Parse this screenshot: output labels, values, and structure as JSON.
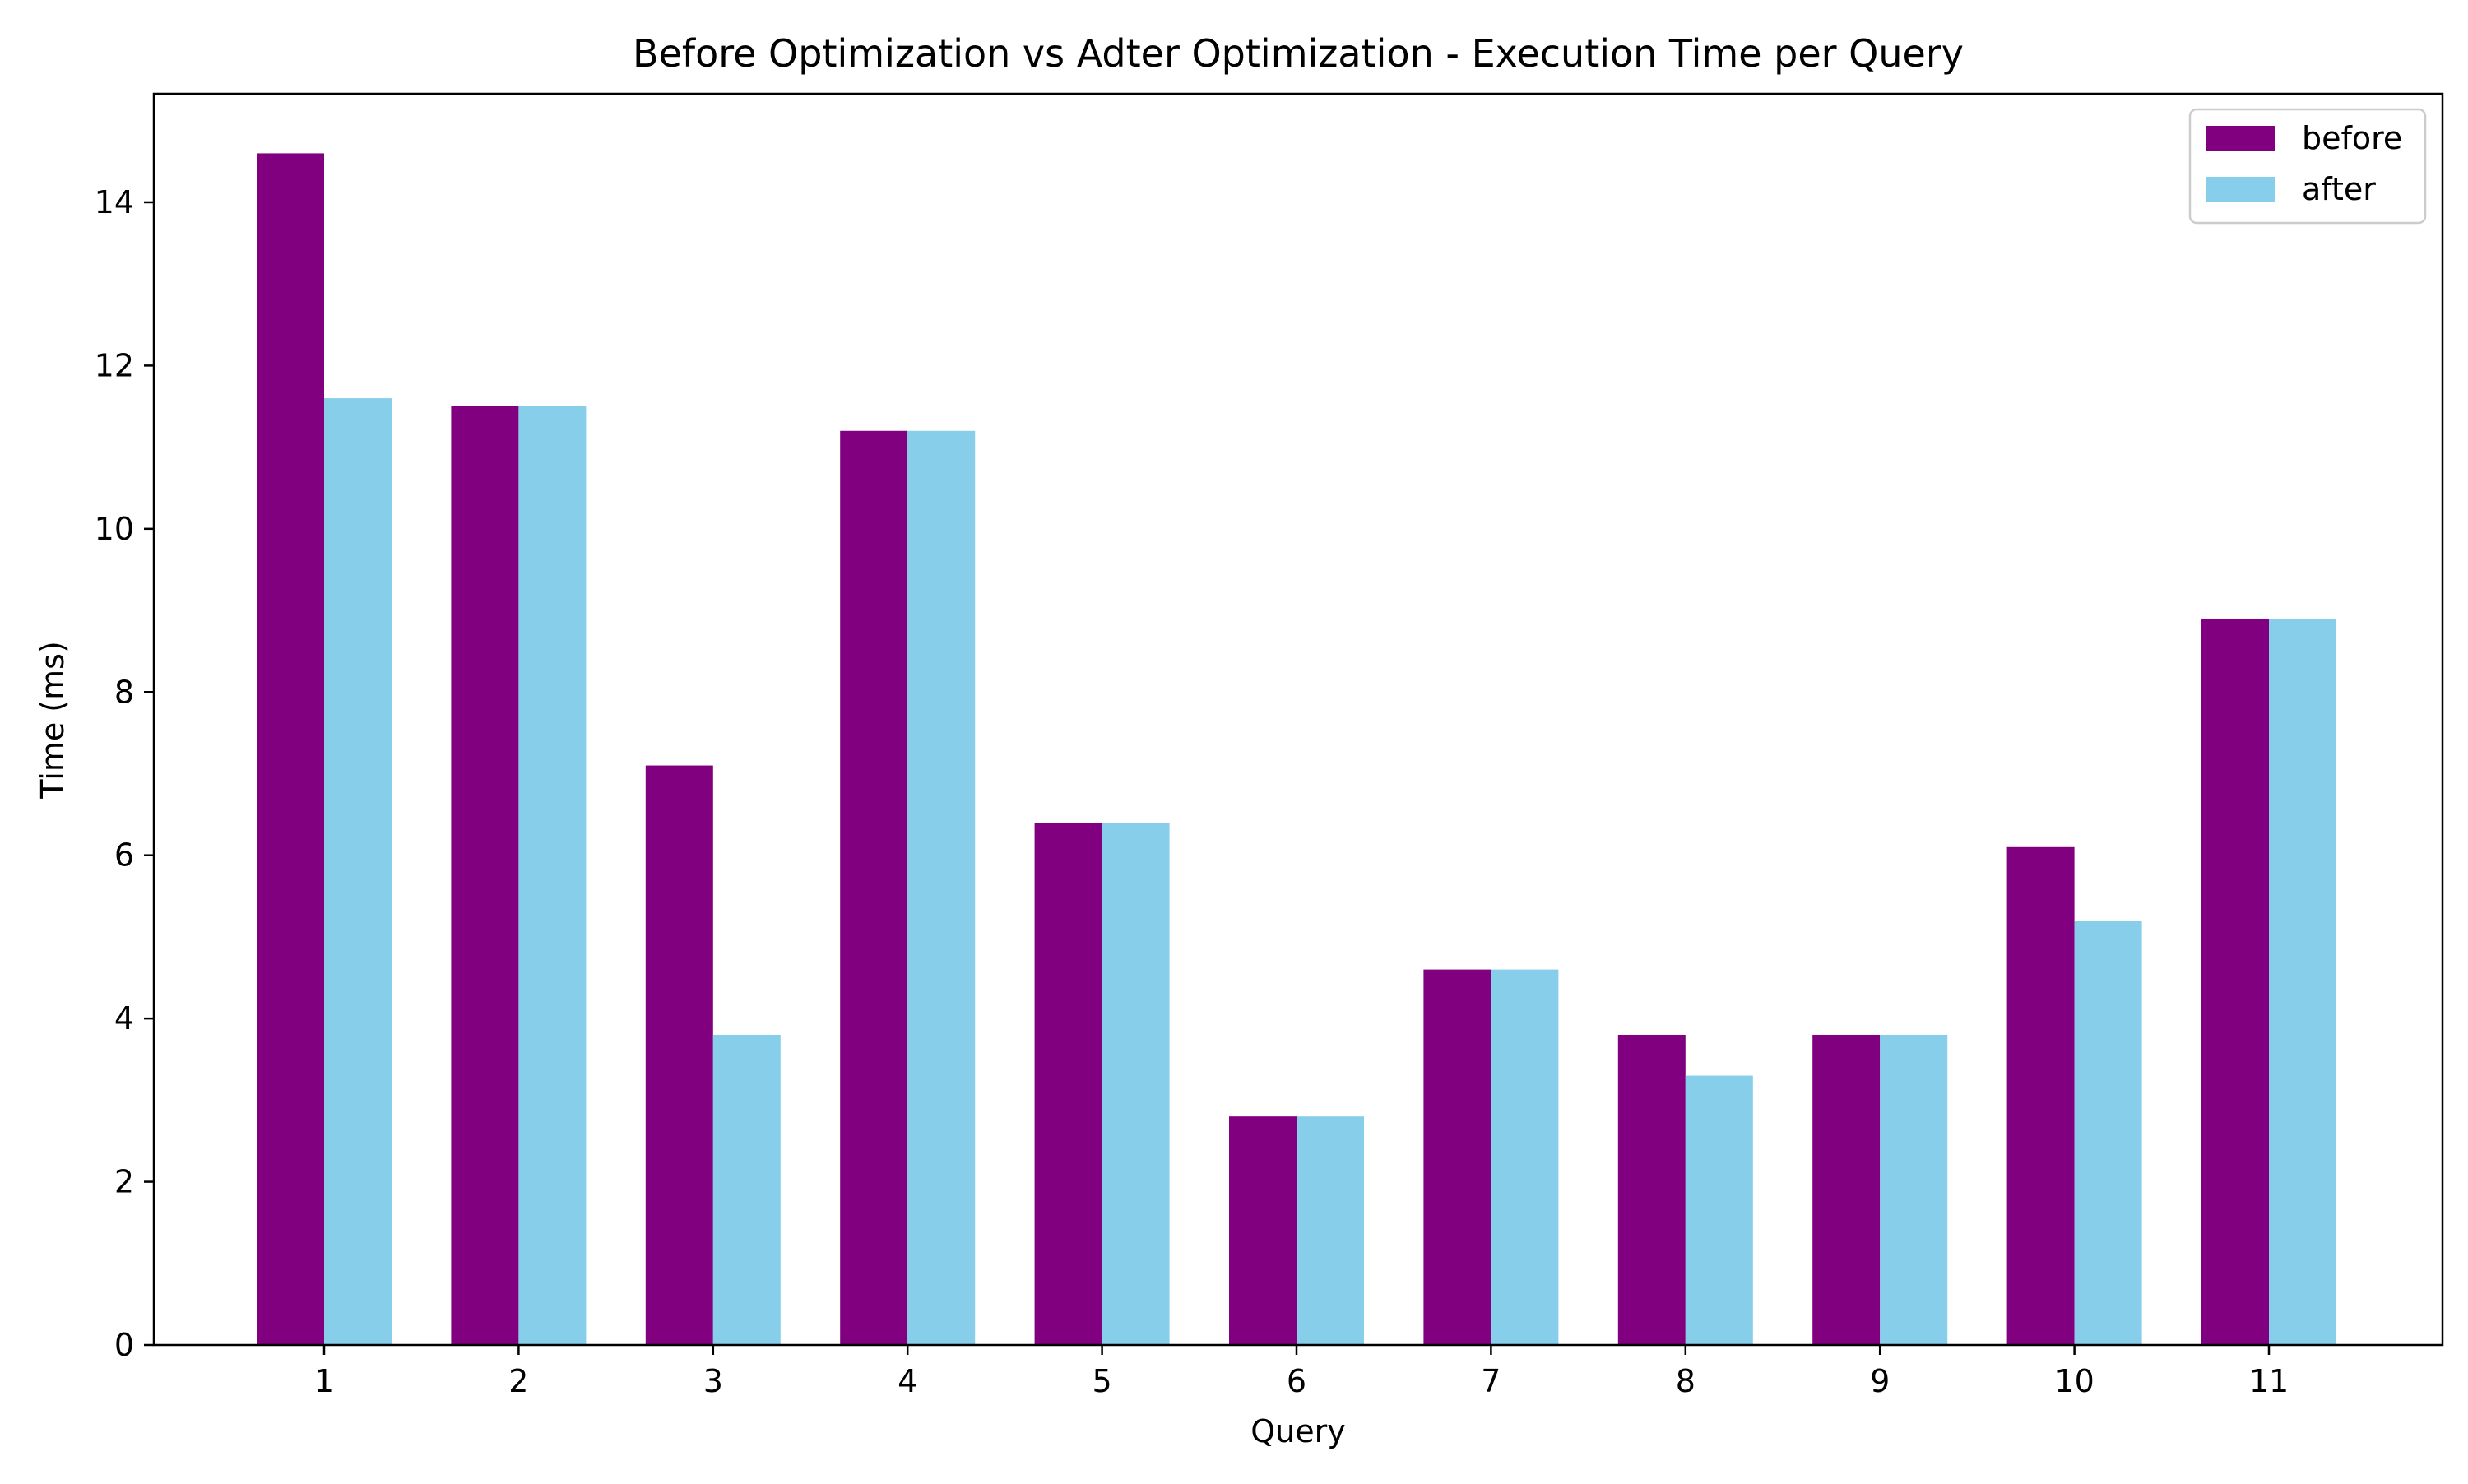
{
  "chart_data": {
    "type": "bar",
    "title": "Before Optimization vs Adter Optimization - Execution Time per Query",
    "xlabel": "Query",
    "ylabel": "Time (ms)",
    "categories": [
      "1",
      "2",
      "3",
      "4",
      "5",
      "6",
      "7",
      "8",
      "9",
      "10",
      "11"
    ],
    "series": [
      {
        "name": "before",
        "color": "#800080",
        "values": [
          14.6,
          11.5,
          7.1,
          11.2,
          6.4,
          2.8,
          4.6,
          3.8,
          3.8,
          6.1,
          8.9
        ]
      },
      {
        "name": "after",
        "color": "#87ceeb",
        "values": [
          11.6,
          11.5,
          3.8,
          11.2,
          6.4,
          2.8,
          4.6,
          3.3,
          3.8,
          5.2,
          8.9
        ]
      }
    ],
    "ylim": [
      0,
      15.33
    ],
    "yticks": [
      "0",
      "2",
      "4",
      "6",
      "8",
      "10",
      "12",
      "14"
    ],
    "grid": false,
    "legend_position": "top-right"
  }
}
